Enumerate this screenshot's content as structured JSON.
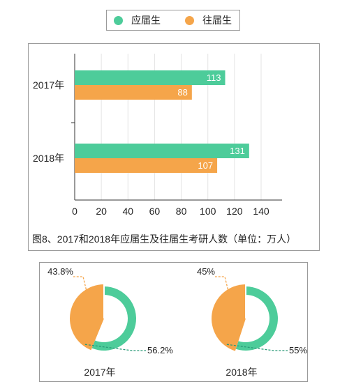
{
  "legend": [
    {
      "label": "应届生",
      "color": "#4dcc9a"
    },
    {
      "label": "往届生",
      "color": "#f5a54a"
    }
  ],
  "chart_data": [
    {
      "type": "bar",
      "orientation": "horizontal",
      "title": "图8、2017和2018年应届生及往届生考研人数（单位：万人）",
      "categories": [
        "2017年",
        "2018年"
      ],
      "series": [
        {
          "name": "应届生",
          "values": [
            113,
            131
          ],
          "color": "#4dcc9a"
        },
        {
          "name": "往届生",
          "values": [
            88,
            107
          ],
          "color": "#f5a54a"
        }
      ],
      "xlim": [
        0,
        140
      ],
      "xticks": [
        0,
        20,
        40,
        60,
        80,
        100,
        120,
        140
      ],
      "grid": true,
      "legend_position": "top"
    },
    {
      "type": "pie",
      "style": "donut",
      "label": "2017年",
      "slices": [
        {
          "name": "往届生",
          "value": 43.8,
          "label": "43.8%",
          "color": "#f5a54a"
        },
        {
          "name": "应届生",
          "value": 56.2,
          "label": "56.2%",
          "color": "#4dcc9a"
        }
      ]
    },
    {
      "type": "pie",
      "style": "donut",
      "label": "2018年",
      "slices": [
        {
          "name": "往届生",
          "value": 45,
          "label": "45%",
          "color": "#f5a54a"
        },
        {
          "name": "应届生",
          "value": 55,
          "label": "55%",
          "color": "#4dcc9a"
        }
      ]
    }
  ]
}
